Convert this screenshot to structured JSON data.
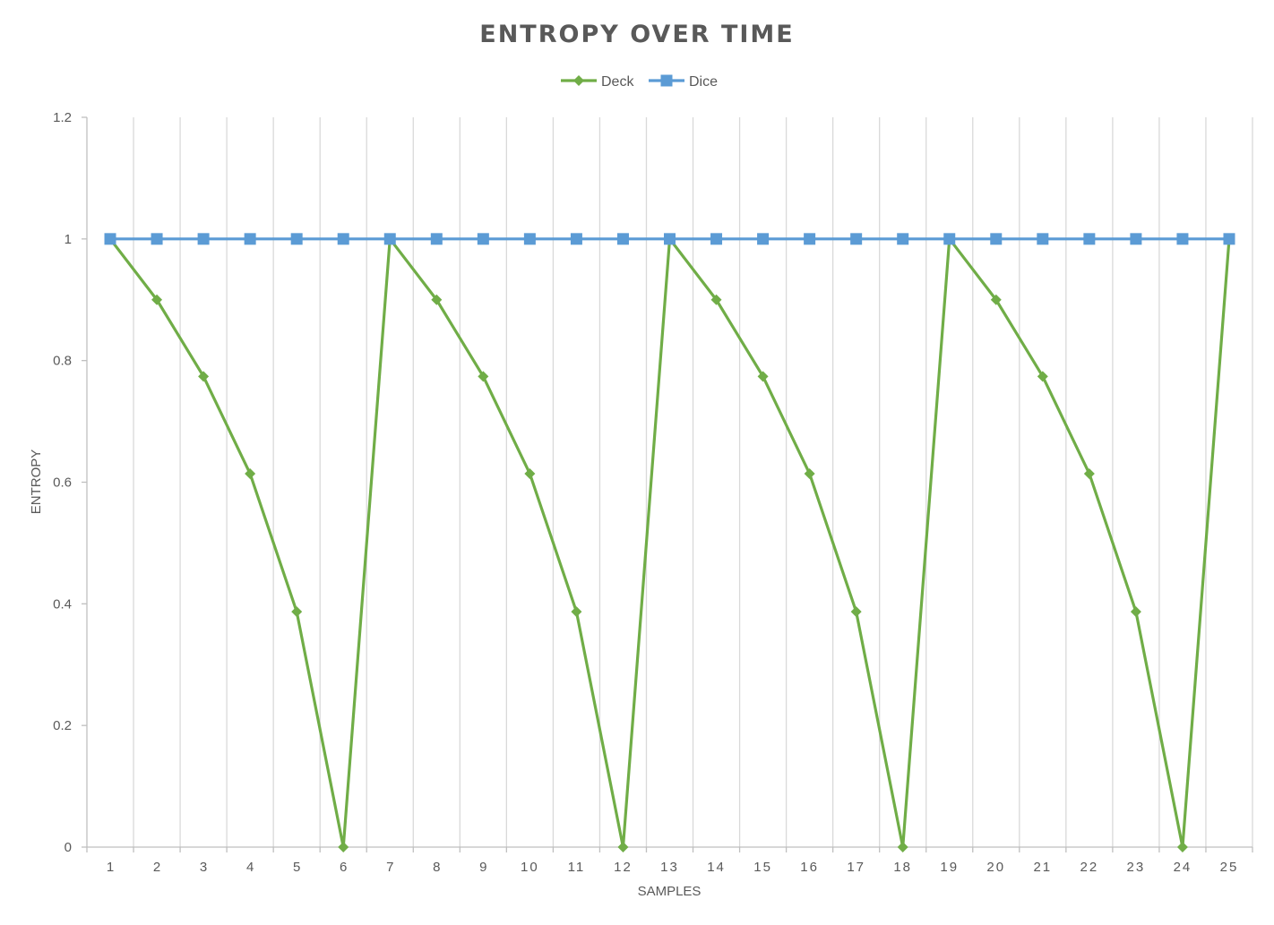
{
  "chart_data": {
    "type": "line",
    "title": "ENTROPY OVER TIME",
    "xlabel": "SAMPLES",
    "ylabel": "ENTROPY",
    "categories": [
      "1",
      "2",
      "3",
      "4",
      "5",
      "6",
      "7",
      "8",
      "9",
      "10",
      "11",
      "12",
      "13",
      "14",
      "15",
      "16",
      "17",
      "18",
      "19",
      "20",
      "21",
      "22",
      "23",
      "24",
      "25"
    ],
    "yticks": [
      "0",
      "0.2",
      "0.4",
      "0.6",
      "0.8",
      "1",
      "1.2"
    ],
    "ylim": [
      0,
      1.2
    ],
    "grid": "vertical",
    "legend": "top-center",
    "series": [
      {
        "name": "Deck",
        "color": "#70AD47",
        "marker": "diamond",
        "values": [
          1,
          0.9,
          0.774,
          0.614,
          0.387,
          0,
          1,
          0.9,
          0.774,
          0.614,
          0.387,
          0,
          1,
          0.9,
          0.774,
          0.614,
          0.387,
          0,
          1,
          0.9,
          0.774,
          0.614,
          0.387,
          0,
          1
        ]
      },
      {
        "name": "Dice",
        "color": "#5B9BD5",
        "marker": "square",
        "values": [
          1,
          1,
          1,
          1,
          1,
          1,
          1,
          1,
          1,
          1,
          1,
          1,
          1,
          1,
          1,
          1,
          1,
          1,
          1,
          1,
          1,
          1,
          1,
          1,
          1
        ]
      }
    ]
  }
}
